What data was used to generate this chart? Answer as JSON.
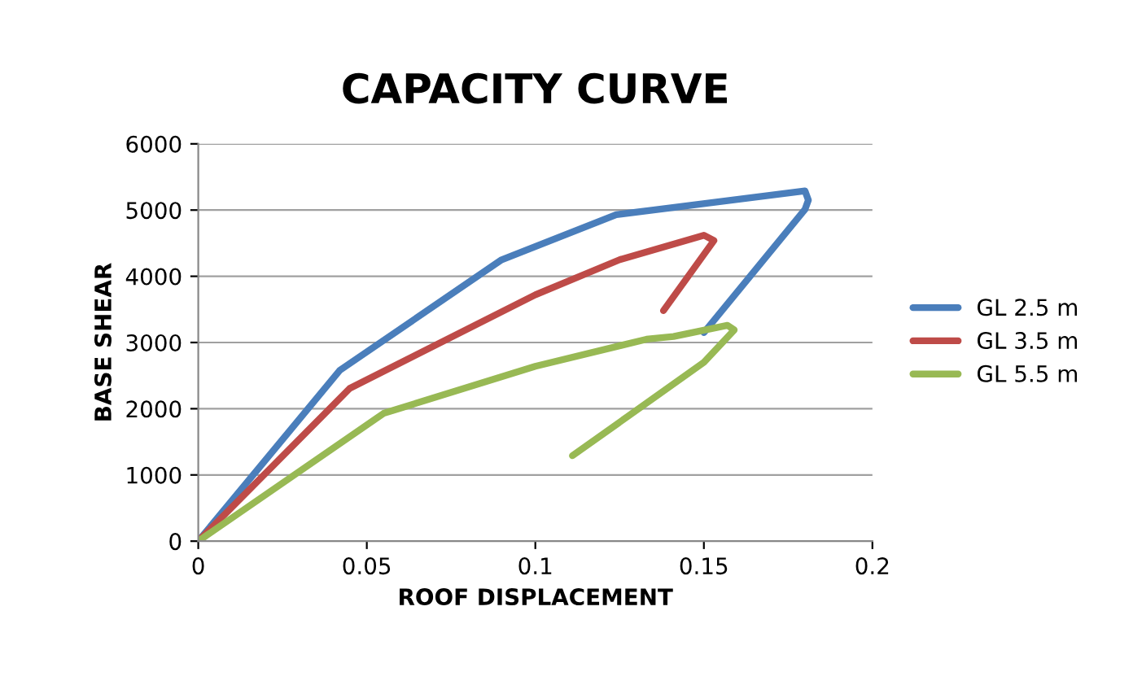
{
  "chart_data": {
    "type": "line",
    "title": "CAPACITY CURVE",
    "xlabel": "ROOF DISPLACEMENT",
    "ylabel": "BASE SHEAR",
    "xlim": [
      0,
      0.2
    ],
    "xticks": [
      0,
      0.05,
      0.1,
      0.15,
      0.2
    ],
    "ylim": [
      0,
      6000
    ],
    "yticks": [
      0,
      1000,
      2000,
      3000,
      4000,
      5000,
      6000
    ],
    "grid": "y",
    "legend": "right",
    "marker": "none",
    "line_style": "solid",
    "series": [
      {
        "name": "GL 2.5 m",
        "color": "#4a7ebb",
        "x": [
          0,
          0.042,
          0.09,
          0.124,
          0.18,
          0.181,
          0.18,
          0.15
        ],
        "values": [
          0,
          2580,
          4250,
          4930,
          5290,
          5150,
          5010,
          3150
        ]
      },
      {
        "name": "GL 3.5 m",
        "color": "#be4b48",
        "x": [
          0,
          0.045,
          0.1,
          0.125,
          0.15,
          0.153,
          0.138
        ],
        "values": [
          0,
          2310,
          3720,
          4250,
          4620,
          4540,
          3480
        ]
      },
      {
        "name": "GL 5.5 m",
        "color": "#98b954",
        "x": [
          0,
          0.055,
          0.1,
          0.133,
          0.141,
          0.157,
          0.159,
          0.15,
          0.111
        ],
        "values": [
          0,
          1930,
          2640,
          3050,
          3090,
          3260,
          3190,
          2700,
          1290
        ]
      }
    ]
  }
}
